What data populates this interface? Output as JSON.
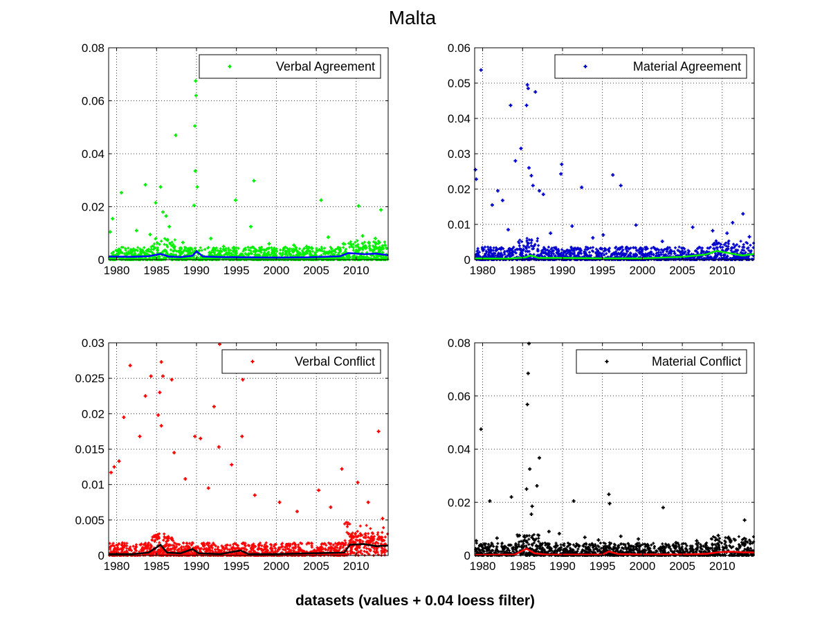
{
  "figure": {
    "title": "Malta",
    "xlabel": "datasets (values + 0.04 loess filter)"
  },
  "chart_data": [
    {
      "type": "scatter",
      "legend": "Verbal Agreement",
      "legend_location": "top-right",
      "grid": true,
      "xlim": [
        1979,
        2014
      ],
      "ylim": [
        0,
        0.08
      ],
      "xticks": [
        1980,
        1985,
        1990,
        1995,
        2000,
        2005,
        2010
      ],
      "yticks": [
        0,
        0.02,
        0.04,
        0.06,
        0.08
      ],
      "ytick_labels": [
        "0",
        "0.02",
        "0.04",
        "0.06",
        "0.08"
      ],
      "point_color": "#00ee00",
      "trend_color": "#0000ff",
      "points": [
        [
          1979.2,
          0.0105
        ],
        [
          1979.5,
          0.0155
        ],
        [
          1980.6,
          0.0253
        ],
        [
          1983.6,
          0.0283
        ],
        [
          1984.9,
          0.0215
        ],
        [
          1985.5,
          0.0275
        ],
        [
          1985.8,
          0.018
        ],
        [
          1986.2,
          0.0165
        ],
        [
          1987.4,
          0.047
        ],
        [
          1989.9,
          0.0675
        ],
        [
          1989.95,
          0.062
        ],
        [
          1989.8,
          0.0505
        ],
        [
          1989.85,
          0.0335
        ],
        [
          1989.7,
          0.0205
        ],
        [
          1990.1,
          0.0275
        ],
        [
          1994.9,
          0.0225
        ],
        [
          1997.2,
          0.0298
        ],
        [
          2005.6,
          0.0225
        ],
        [
          2010.3,
          0.0203
        ],
        [
          2013.1,
          0.0188
        ],
        [
          1982.5,
          0.011
        ],
        [
          1984.2,
          0.0095
        ],
        [
          1986.6,
          0.0125
        ],
        [
          1988.3,
          0.0065
        ],
        [
          1991.8,
          0.008
        ],
        [
          1993.4,
          0.005
        ],
        [
          1996.8,
          0.0125
        ],
        [
          1999.1,
          0.006
        ],
        [
          2002.2,
          0.0055
        ],
        [
          2003.8,
          0.005
        ],
        [
          2006.5,
          0.0085
        ],
        [
          2008.4,
          0.006
        ],
        [
          2010.8,
          0.009
        ],
        [
          2011.6,
          0.0065
        ],
        [
          2012.4,
          0.008
        ],
        [
          2013.6,
          0.0055
        ]
      ],
      "trend": [
        [
          1979,
          0.0012
        ],
        [
          1982,
          0.0011
        ],
        [
          1984,
          0.0013
        ],
        [
          1985.5,
          0.0022
        ],
        [
          1986.5,
          0.0012
        ],
        [
          1988,
          0.001
        ],
        [
          1989.5,
          0.0015
        ],
        [
          1990,
          0.0032
        ],
        [
          1990.8,
          0.0012
        ],
        [
          1993,
          0.001
        ],
        [
          1996,
          0.0009
        ],
        [
          2000,
          0.0008
        ],
        [
          2004,
          0.0009
        ],
        [
          2008,
          0.0013
        ],
        [
          2009,
          0.0025
        ],
        [
          2011,
          0.0021
        ],
        [
          2012.5,
          0.0023
        ],
        [
          2014,
          0.0017
        ]
      ]
    },
    {
      "type": "scatter",
      "legend": "Material Agreement",
      "legend_location": "top-right",
      "grid": true,
      "xlim": [
        1979,
        2014
      ],
      "ylim": [
        0,
        0.06
      ],
      "xticks": [
        1980,
        1985,
        1990,
        1995,
        2000,
        2005,
        2010
      ],
      "yticks": [
        0,
        0.01,
        0.02,
        0.03,
        0.04,
        0.05,
        0.06
      ],
      "ytick_labels": [
        "0",
        "0.01",
        "0.02",
        "0.03",
        "0.04",
        "0.05",
        "0.06"
      ],
      "point_color": "#0000cc",
      "trend_color": "#00ee00",
      "points": [
        [
          1979.8,
          0.0537
        ],
        [
          1979.1,
          0.0255
        ],
        [
          1979.2,
          0.0228
        ],
        [
          1981.2,
          0.0155
        ],
        [
          1981.9,
          0.0195
        ],
        [
          1982.5,
          0.0168
        ],
        [
          1983.5,
          0.0437
        ],
        [
          1984.1,
          0.028
        ],
        [
          1984.8,
          0.0315
        ],
        [
          1985.6,
          0.0495
        ],
        [
          1985.7,
          0.0485
        ],
        [
          1985.5,
          0.0437
        ],
        [
          1986.6,
          0.0475
        ],
        [
          1985.8,
          0.026
        ],
        [
          1986.1,
          0.0238
        ],
        [
          1986.3,
          0.021
        ],
        [
          1987.1,
          0.0195
        ],
        [
          1987.6,
          0.0185
        ],
        [
          1989.9,
          0.027
        ],
        [
          1989.8,
          0.0243
        ],
        [
          1992.4,
          0.0205
        ],
        [
          1996.3,
          0.024
        ],
        [
          1997.3,
          0.021
        ],
        [
          1999.2,
          0.0098
        ],
        [
          2012.6,
          0.013
        ],
        [
          2011.3,
          0.0105
        ],
        [
          1983.2,
          0.0085
        ],
        [
          1988.5,
          0.0075
        ],
        [
          1991.2,
          0.0095
        ],
        [
          1993.8,
          0.0062
        ],
        [
          1995.1,
          0.007
        ],
        [
          2002.5,
          0.0052
        ],
        [
          2006.3,
          0.0092
        ],
        [
          2008.8,
          0.0082
        ],
        [
          2010.6,
          0.0075
        ],
        [
          2013.4,
          0.0065
        ]
      ],
      "trend": [
        [
          1979,
          0.0004
        ],
        [
          1983,
          0.0003
        ],
        [
          1985.3,
          0.0006
        ],
        [
          1986,
          0.0012
        ],
        [
          1987,
          0.0005
        ],
        [
          1990,
          0.0005
        ],
        [
          1995,
          0.0004
        ],
        [
          2000,
          0.0004
        ],
        [
          2005,
          0.0008
        ],
        [
          2008,
          0.0015
        ],
        [
          2009.3,
          0.0025
        ],
        [
          2011,
          0.0018
        ],
        [
          2012.5,
          0.0012
        ],
        [
          2014,
          0.0016
        ]
      ]
    },
    {
      "type": "scatter",
      "legend": "Verbal Conflict",
      "legend_location": "top-right",
      "grid": true,
      "xlim": [
        1979,
        2014
      ],
      "ylim": [
        0,
        0.03
      ],
      "xticks": [
        1980,
        1985,
        1990,
        1995,
        2000,
        2005,
        2010
      ],
      "yticks": [
        0,
        0.005,
        0.01,
        0.015,
        0.02,
        0.025,
        0.03
      ],
      "ytick_labels": [
        "0",
        "0.005",
        "0.01",
        "0.015",
        "0.02",
        "0.025",
        "0.03"
      ],
      "point_color": "#ff0000",
      "trend_color": "#000000",
      "points": [
        [
          1981.7,
          0.0268
        ],
        [
          1984.3,
          0.0253
        ],
        [
          1985.6,
          0.0273
        ],
        [
          1985.8,
          0.0253
        ],
        [
          1986.9,
          0.0248
        ],
        [
          1983.6,
          0.0225
        ],
        [
          1985.4,
          0.023
        ],
        [
          1992.9,
          0.0298
        ],
        [
          1995.8,
          0.0248
        ],
        [
          1992.2,
          0.021
        ],
        [
          1980.9,
          0.0195
        ],
        [
          1982.9,
          0.0168
        ],
        [
          1985.2,
          0.0198
        ],
        [
          1985.6,
          0.0183
        ],
        [
          1989.8,
          0.0168
        ],
        [
          1990.5,
          0.0165
        ],
        [
          1992.8,
          0.0153
        ],
        [
          1995.7,
          0.0168
        ],
        [
          2012.8,
          0.0175
        ],
        [
          1979.3,
          0.0117
        ],
        [
          1979.7,
          0.0125
        ],
        [
          1980.3,
          0.0133
        ],
        [
          1994.4,
          0.0128
        ],
        [
          2008.2,
          0.0122
        ],
        [
          2010.2,
          0.0103
        ],
        [
          1987.2,
          0.0145
        ],
        [
          1988.6,
          0.0108
        ],
        [
          1991.5,
          0.0095
        ],
        [
          1997.3,
          0.0085
        ],
        [
          2000.4,
          0.0075
        ],
        [
          2002.6,
          0.0062
        ],
        [
          2005.3,
          0.0092
        ],
        [
          2006.8,
          0.0068
        ],
        [
          2011.5,
          0.0075
        ],
        [
          2013.3,
          0.0052
        ]
      ],
      "trend": [
        [
          1979,
          0.0002
        ],
        [
          1982,
          0.0002
        ],
        [
          1984,
          0.0004
        ],
        [
          1985.5,
          0.0015
        ],
        [
          1986.3,
          0.0004
        ],
        [
          1988,
          0.0003
        ],
        [
          1989.5,
          0.0009
        ],
        [
          1990.3,
          0.0003
        ],
        [
          1993,
          0.0002
        ],
        [
          1995.5,
          0.0007
        ],
        [
          1996.5,
          0.0002
        ],
        [
          2000,
          0.0002
        ],
        [
          2004,
          0.0003
        ],
        [
          2008.5,
          0.0004
        ],
        [
          2009.2,
          0.0015
        ],
        [
          2011,
          0.0016
        ],
        [
          2012.5,
          0.0013
        ],
        [
          2014,
          0.0014
        ]
      ]
    },
    {
      "type": "scatter",
      "legend": "Material Conflict",
      "legend_location": "top-right",
      "grid": true,
      "xlim": [
        1979,
        2014
      ],
      "ylim": [
        0,
        0.08
      ],
      "xticks": [
        1980,
        1985,
        1990,
        1995,
        2000,
        2005,
        2010
      ],
      "yticks": [
        0,
        0.02,
        0.04,
        0.06,
        0.08
      ],
      "ytick_labels": [
        "0",
        "0.02",
        "0.04",
        "0.06",
        "0.08"
      ],
      "point_color": "#000000",
      "trend_color": "#ff0000",
      "points": [
        [
          1985.8,
          0.0797
        ],
        [
          1985.7,
          0.0685
        ],
        [
          1985.6,
          0.0568
        ],
        [
          1979.8,
          0.0475
        ],
        [
          1987.1,
          0.0367
        ],
        [
          1985.9,
          0.0325
        ],
        [
          1986.8,
          0.0262
        ],
        [
          1985.5,
          0.025
        ],
        [
          1983.6,
          0.022
        ],
        [
          1980.9,
          0.0205
        ],
        [
          1991.4,
          0.0205
        ],
        [
          1995.8,
          0.023
        ],
        [
          1995.9,
          0.0195
        ],
        [
          2002.6,
          0.018
        ],
        [
          2012.8,
          0.0133
        ],
        [
          1986.2,
          0.0185
        ],
        [
          1986.1,
          0.0155
        ],
        [
          1979.2,
          0.0055
        ],
        [
          1981.8,
          0.0065
        ],
        [
          1984.6,
          0.0075
        ],
        [
          1988.3,
          0.009
        ],
        [
          1989.6,
          0.0082
        ],
        [
          1992.8,
          0.0068
        ],
        [
          1994.5,
          0.0058
        ],
        [
          1997.3,
          0.0072
        ],
        [
          1999.5,
          0.0062
        ],
        [
          2004.2,
          0.0048
        ],
        [
          2006.8,
          0.0055
        ],
        [
          2009.5,
          0.0075
        ],
        [
          2010.8,
          0.0068
        ],
        [
          2011.6,
          0.0058
        ],
        [
          2013.5,
          0.0045
        ]
      ],
      "trend": [
        [
          1979,
          0.0002
        ],
        [
          1984,
          0.0003
        ],
        [
          1985.5,
          0.0025
        ],
        [
          1986.5,
          0.0008
        ],
        [
          1988,
          0.0003
        ],
        [
          1995,
          0.0003
        ],
        [
          1995.8,
          0.0015
        ],
        [
          1997,
          0.0005
        ],
        [
          2000,
          0.0004
        ],
        [
          2005,
          0.0004
        ],
        [
          2008,
          0.0006
        ],
        [
          2009.5,
          0.0012
        ],
        [
          2011,
          0.0014
        ],
        [
          2012.5,
          0.0012
        ],
        [
          2014,
          0.0011
        ]
      ]
    }
  ]
}
